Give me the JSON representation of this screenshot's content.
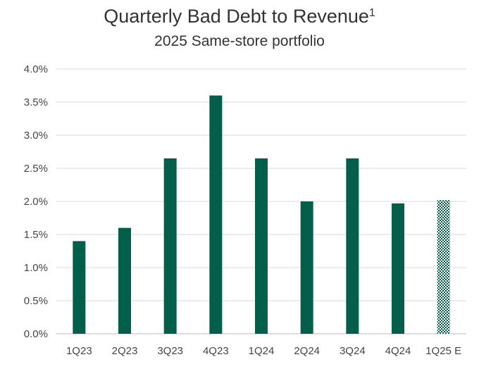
{
  "chart_data": {
    "type": "bar",
    "title": "Quarterly Bad Debt to Revenue",
    "title_superscript": "1",
    "subtitle": "2025 Same-store portfolio",
    "categories": [
      "1Q23",
      "2Q23",
      "3Q23",
      "4Q23",
      "1Q24",
      "2Q24",
      "3Q24",
      "4Q24",
      "1Q25 E"
    ],
    "values": [
      1.4,
      1.6,
      2.65,
      3.6,
      2.65,
      2.0,
      2.65,
      1.97,
      2.02
    ],
    "estimate_flags": [
      false,
      false,
      false,
      false,
      false,
      false,
      false,
      false,
      true
    ],
    "ylim": [
      0,
      4.0
    ],
    "yticks": [
      "0.0%",
      "0.5%",
      "1.0%",
      "1.5%",
      "2.0%",
      "2.5%",
      "3.0%",
      "3.5%",
      "4.0%"
    ],
    "xlabel": "",
    "ylabel": "",
    "grid": true,
    "colors": {
      "bar": "#035e4a",
      "estimate": "#035e4a",
      "grid": "#d9d9d9",
      "axis": "#bfbfbf"
    }
  }
}
